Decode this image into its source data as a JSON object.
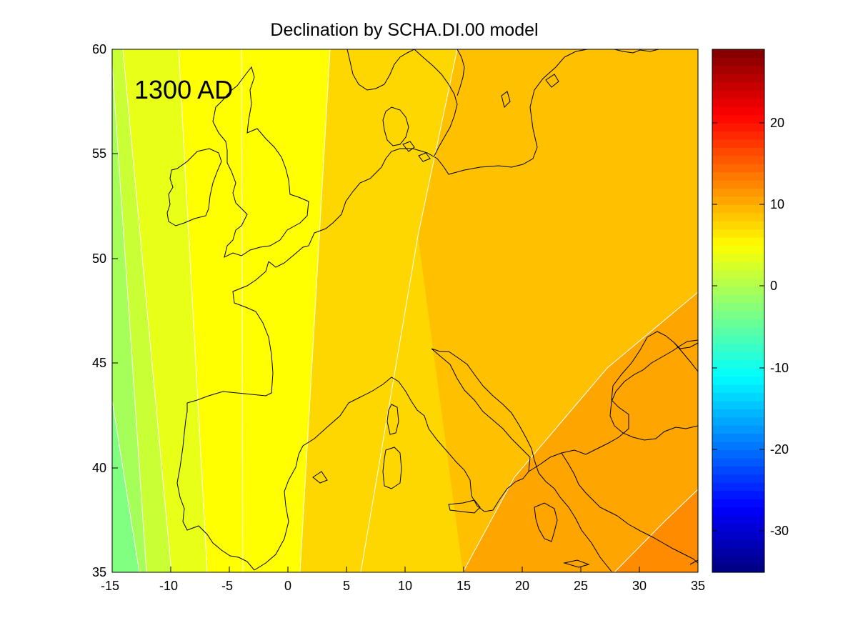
{
  "figure": {
    "title": "Declination by SCHA.DI.00 model",
    "epoch_label": "1300 AD"
  },
  "map": {
    "x_ticks": [
      "-15",
      "-10",
      "-5",
      "0",
      "5",
      "10",
      "15",
      "20",
      "25",
      "30",
      "35"
    ],
    "y_ticks": [
      "60",
      "55",
      "50",
      "45",
      "40",
      "35"
    ],
    "lon_range": [
      -15,
      35
    ],
    "lat_range": [
      35,
      60
    ],
    "coastline_color": "#000000",
    "contour_line_color": "#ffffff"
  },
  "colorbar": {
    "tick_labels": [
      "20",
      "10",
      "0",
      "-10",
      "-20",
      "-30"
    ],
    "range": [
      -35,
      29
    ],
    "colormap": "jet"
  },
  "chart_data": {
    "type": "heatmap",
    "title": "Declination by SCHA.DI.00 model",
    "annotation": "1300 AD",
    "xlim": [
      -15,
      35
    ],
    "ylim": [
      35,
      60
    ],
    "clim": [
      -35,
      29
    ],
    "x_tick_values": [
      -15,
      -10,
      -5,
      0,
      5,
      10,
      15,
      20,
      25,
      30,
      35
    ],
    "y_tick_values": [
      35,
      40,
      45,
      50,
      55,
      60
    ],
    "colorbar_tick_values": [
      -30,
      -20,
      -10,
      0,
      10,
      20
    ],
    "contour_bands": [
      {
        "range": [
          -2,
          0
        ],
        "color": "#80ff80"
      },
      {
        "range": [
          0,
          2
        ],
        "color": "#a6ff59"
      },
      {
        "range": [
          2,
          4
        ],
        "color": "#c8ff35"
      },
      {
        "range": [
          4,
          6
        ],
        "color": "#e8ff18"
      },
      {
        "range": [
          6,
          8
        ],
        "color": "#ffff00"
      },
      {
        "range": [
          8,
          10
        ],
        "color": "#ffd700"
      },
      {
        "range": [
          10,
          12
        ],
        "color": "#ffc000"
      },
      {
        "range": [
          12,
          14
        ],
        "color": "#ffa500"
      },
      {
        "range": [
          14,
          16
        ],
        "color": "#ff8c00"
      }
    ]
  }
}
